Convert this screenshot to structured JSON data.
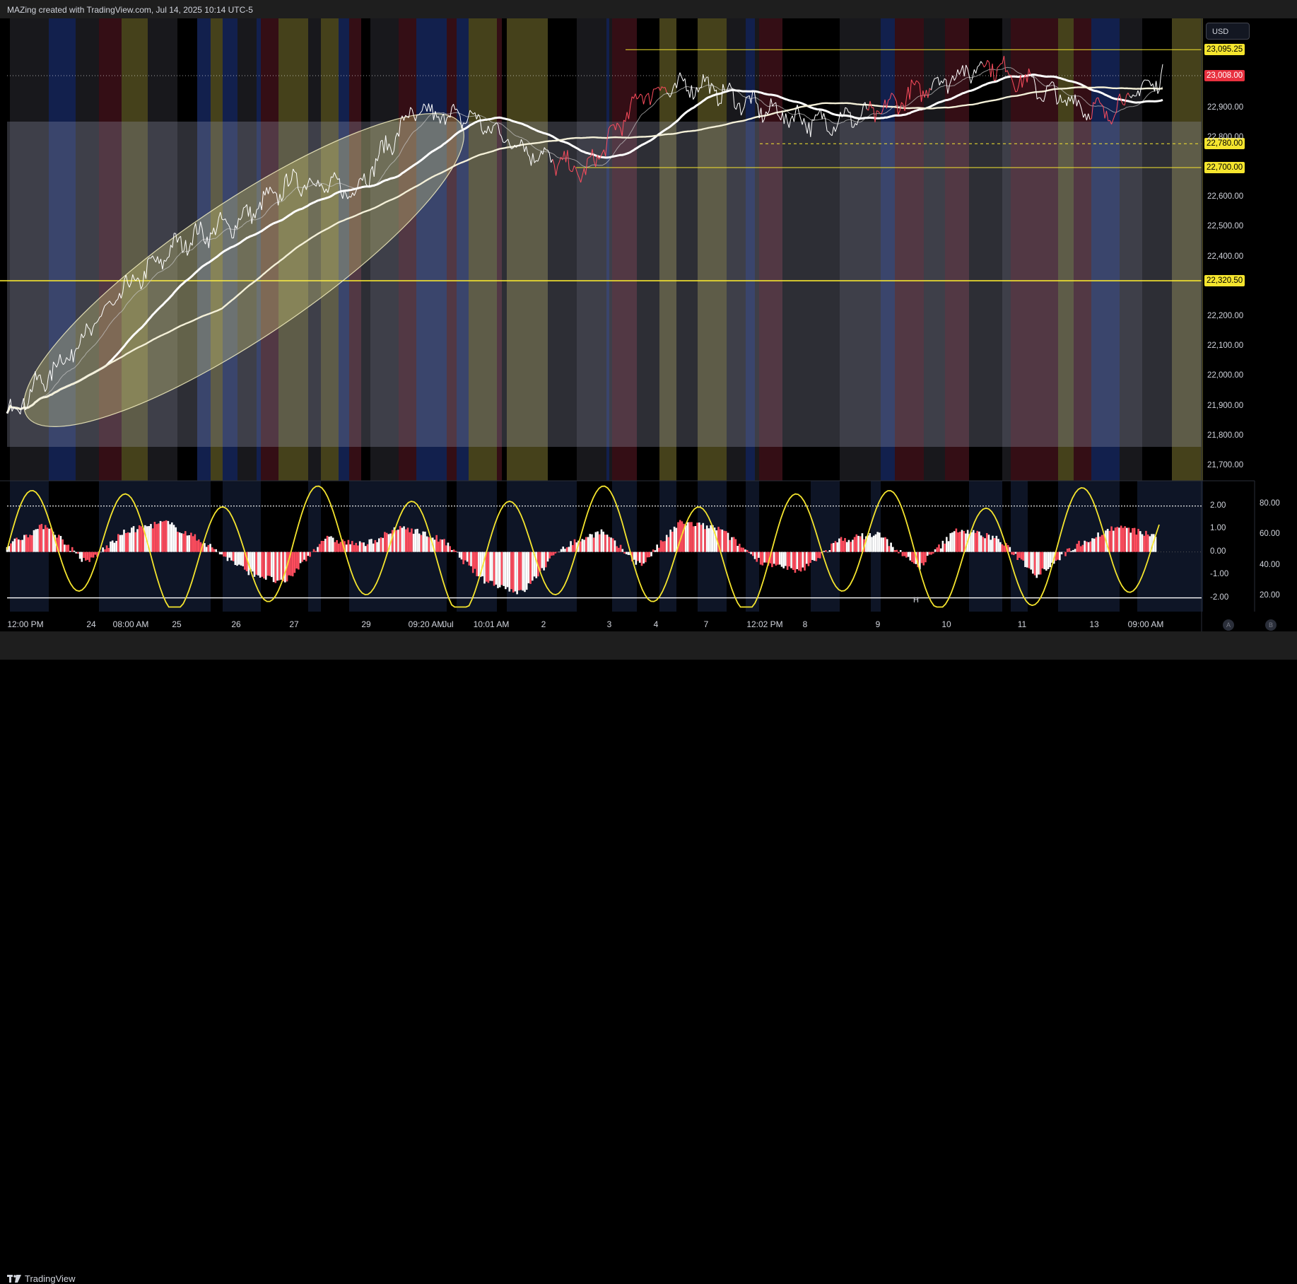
{
  "header": {
    "text": "MAZing created with TradingView.com, Jul 14, 2025 10:14 UTC-5"
  },
  "currency_button": "USD",
  "price_tags": [
    {
      "label": "23,095.25",
      "price": 23095.25,
      "bg": "#f5e52e",
      "fg": "#000000"
    },
    {
      "label": "23,008.00",
      "price": 23008,
      "bg": "#e8313f",
      "fg": "#ffffff"
    },
    {
      "label": "22,780.00",
      "price": 22780,
      "bg": "#f5e52e",
      "fg": "#000000"
    },
    {
      "label": "22,700.00",
      "price": 22700,
      "bg": "#f5e52e",
      "fg": "#000000"
    },
    {
      "label": "22,320.50",
      "price": 22320.5,
      "bg": "#f5e52e",
      "fg": "#000000"
    }
  ],
  "price_axis": [
    "22,900.00",
    "22,800.00",
    "22,600.00",
    "22,500.00",
    "22,400.00",
    "22,200.00",
    "22,100.00",
    "22,000.00",
    "21,900.00",
    "21,800.00",
    "21,700.00"
  ],
  "osc_axis_left": [
    "2.00",
    "1.00",
    "0.00",
    "-1.00",
    "-2.00"
  ],
  "osc_axis_right": [
    "80.00",
    "60.00",
    "40.00",
    "20.00"
  ],
  "time_axis": [
    "12:00 PM",
    "24",
    "08:00 AM",
    "25",
    "26",
    "27",
    "29",
    "09:20 AM",
    "Jul",
    "10:01 AM",
    "2",
    "3",
    "4",
    "7",
    "12:02 PM",
    "8",
    "9",
    "10",
    "11",
    "13",
    "09:00 AM"
  ],
  "scale_buttons": [
    "A",
    "B"
  ],
  "oscillator_marker": "H",
  "footer": {
    "logo_text": "TradingView"
  },
  "colors": {
    "accent_yellow": "#f5e52e",
    "bear_red": "#e8313f",
    "bull_white": "#ffffff",
    "session_blue": "#1c3f8f"
  },
  "chart_data": {
    "type": "line",
    "symbol_currency": "USD",
    "ylim": [
      21650,
      23200
    ],
    "levels": [
      {
        "price": 23095.25,
        "style": "solid",
        "color": "#f5e52e"
      },
      {
        "price": 22780,
        "style": "dashed",
        "color": "#f5e52e"
      },
      {
        "price": 22700,
        "style": "solid",
        "color": "#f5e52e"
      },
      {
        "price": 22320.5,
        "style": "solid",
        "color": "#f5e52e"
      }
    ],
    "last_price": 23008,
    "price_series": {
      "name": "",
      "x": [
        "Jun 23 12:00",
        "Jun 24",
        "Jun 24 08:00",
        "Jun 25",
        "Jun 26",
        "Jun 27",
        "Jun 29",
        "Jun 30 09:20",
        "Jul 1",
        "Jul 1 10:01",
        "Jul 2",
        "Jul 3",
        "Jul 4",
        "Jul 7",
        "Jul 7 12:02",
        "Jul 8",
        "Jul 9",
        "Jul 10",
        "Jul 11",
        "Jul 13",
        "Jul 14 09:00"
      ],
      "values": [
        21870,
        22060,
        22280,
        22450,
        22520,
        22660,
        22620,
        22880,
        22870,
        22760,
        22680,
        22950,
        22980,
        22900,
        22850,
        22880,
        22980,
        23050,
        22950,
        22880,
        23008
      ]
    },
    "oscillator": {
      "ylim_left": [
        -2.6,
        3.1
      ],
      "ylim_right": [
        10,
        95
      ],
      "reference_lines": [
        2.0,
        -2.0
      ],
      "histogram": [
        0.3,
        1.2,
        -0.5,
        0.9,
        1.3,
        0.4,
        -0.8,
        -1.4,
        0.6,
        0.3,
        1.1,
        0.5,
        -1.2,
        -1.8,
        0.2,
        0.9,
        -0.6,
        1.3,
        1.0,
        -0.4,
        -0.9,
        0.5,
        0.8,
        -0.7,
        1.0,
        0.6,
        -1.0,
        0.3,
        1.1,
        0.7
      ]
    }
  }
}
